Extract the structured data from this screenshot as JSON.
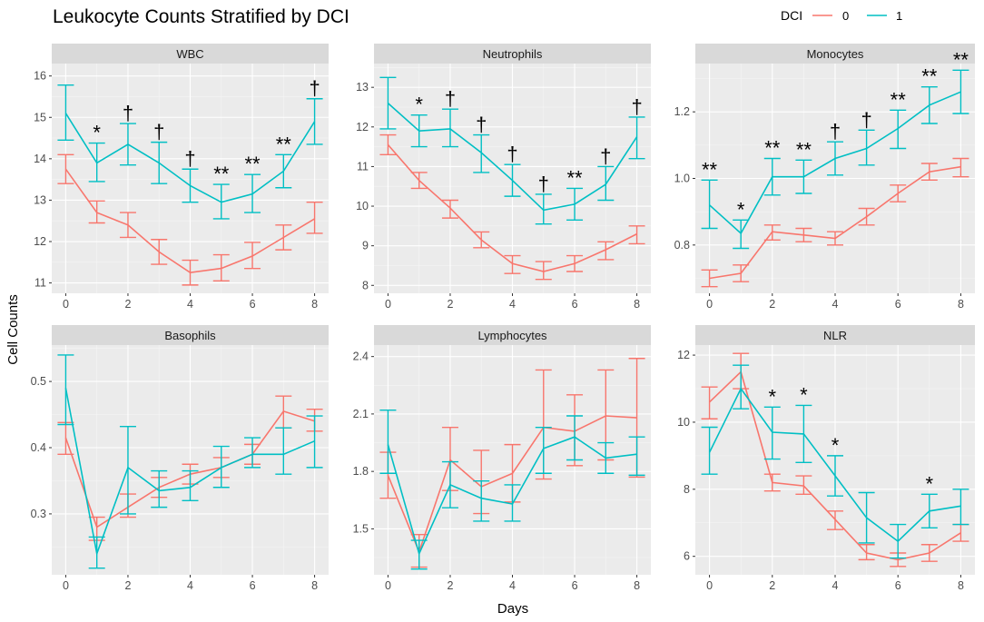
{
  "title": "Leukocyte Counts Stratified by DCI",
  "xlabel": "Days",
  "ylabel": "Cell Counts",
  "legend": {
    "title": "DCI",
    "labels": [
      "0",
      "1"
    ]
  },
  "colors": {
    "dci0": "#f8766d",
    "dci1": "#00bfc4"
  },
  "chart_data": [
    {
      "type": "line",
      "panel": "WBC",
      "x": [
        0,
        1,
        2,
        3,
        4,
        5,
        6,
        7,
        8
      ],
      "ylim": [
        10.75,
        16.3
      ],
      "yticks": [
        11,
        12,
        13,
        14,
        15,
        16
      ],
      "xticks": [
        0,
        2,
        4,
        6,
        8
      ],
      "series": [
        {
          "name": "0",
          "values": [
            13.75,
            12.7,
            12.4,
            11.75,
            11.25,
            11.35,
            11.65,
            12.1,
            12.55
          ],
          "lower": [
            13.4,
            12.45,
            12.1,
            11.45,
            10.95,
            11.05,
            11.35,
            11.8,
            12.2
          ],
          "upper": [
            14.1,
            12.98,
            12.7,
            12.05,
            11.55,
            11.68,
            11.98,
            12.4,
            12.95
          ]
        },
        {
          "name": "1",
          "values": [
            15.1,
            13.9,
            14.35,
            13.9,
            13.35,
            12.95,
            13.15,
            13.7,
            14.9
          ],
          "lower": [
            14.45,
            13.45,
            13.85,
            13.4,
            12.95,
            12.55,
            12.7,
            13.3,
            14.35
          ],
          "upper": [
            15.78,
            14.38,
            14.85,
            14.4,
            13.75,
            13.38,
            13.62,
            14.1,
            15.45
          ]
        }
      ],
      "annotations": [
        {
          "x": 1,
          "label": "*"
        },
        {
          "x": 2,
          "label": "†"
        },
        {
          "x": 3,
          "label": "†"
        },
        {
          "x": 4,
          "label": "†"
        },
        {
          "x": 5,
          "label": "**"
        },
        {
          "x": 6,
          "label": "**"
        },
        {
          "x": 7,
          "label": "**"
        },
        {
          "x": 8,
          "label": "†"
        }
      ]
    },
    {
      "type": "line",
      "panel": "Neutrophils",
      "x": [
        0,
        1,
        2,
        3,
        4,
        5,
        6,
        7,
        8
      ],
      "ylim": [
        7.8,
        13.6
      ],
      "yticks": [
        8,
        9,
        10,
        11,
        12,
        13
      ],
      "xticks": [
        0,
        2,
        4,
        6,
        8
      ],
      "series": [
        {
          "name": "0",
          "values": [
            11.55,
            10.65,
            9.95,
            9.15,
            8.55,
            8.35,
            8.55,
            8.9,
            9.3
          ],
          "lower": [
            11.3,
            10.45,
            9.7,
            8.95,
            8.3,
            8.15,
            8.35,
            8.65,
            9.05
          ],
          "upper": [
            11.8,
            10.85,
            10.15,
            9.35,
            8.75,
            8.6,
            8.75,
            9.1,
            9.5
          ]
        },
        {
          "name": "1",
          "values": [
            12.6,
            11.9,
            11.95,
            11.35,
            10.65,
            9.9,
            10.05,
            10.55,
            11.75
          ],
          "lower": [
            11.95,
            11.5,
            11.5,
            10.85,
            10.25,
            9.55,
            9.65,
            10.15,
            11.2
          ],
          "upper": [
            13.25,
            12.3,
            12.45,
            11.8,
            11.05,
            10.3,
            10.45,
            11.0,
            12.25
          ]
        }
      ],
      "annotations": [
        {
          "x": 1,
          "label": "*"
        },
        {
          "x": 2,
          "label": "†"
        },
        {
          "x": 3,
          "label": "†"
        },
        {
          "x": 4,
          "label": "†"
        },
        {
          "x": 5,
          "label": "†"
        },
        {
          "x": 6,
          "label": "**"
        },
        {
          "x": 7,
          "label": "†"
        },
        {
          "x": 8,
          "label": "†"
        }
      ]
    },
    {
      "type": "line",
      "panel": "Monocytes",
      "x": [
        0,
        1,
        2,
        3,
        4,
        5,
        6,
        7,
        8
      ],
      "ylim": [
        0.655,
        1.345
      ],
      "yticks": [
        0.8,
        1.0,
        1.2
      ],
      "ytick_labels": [
        "0.8",
        "1.0",
        "1.2"
      ],
      "xticks": [
        0,
        2,
        4,
        6,
        8
      ],
      "series": [
        {
          "name": "0",
          "values": [
            0.7,
            0.715,
            0.84,
            0.83,
            0.82,
            0.885,
            0.955,
            1.02,
            1.035
          ],
          "lower": [
            0.675,
            0.69,
            0.815,
            0.81,
            0.8,
            0.86,
            0.93,
            0.995,
            1.005
          ],
          "upper": [
            0.725,
            0.74,
            0.86,
            0.85,
            0.84,
            0.91,
            0.98,
            1.045,
            1.06
          ]
        },
        {
          "name": "1",
          "values": [
            0.92,
            0.835,
            1.005,
            1.005,
            1.06,
            1.09,
            1.15,
            1.22,
            1.26
          ],
          "lower": [
            0.85,
            0.79,
            0.95,
            0.955,
            1.01,
            1.04,
            1.09,
            1.165,
            1.195
          ],
          "upper": [
            0.995,
            0.875,
            1.06,
            1.055,
            1.11,
            1.145,
            1.205,
            1.275,
            1.325
          ]
        }
      ],
      "annotations": [
        {
          "x": 0,
          "label": "**"
        },
        {
          "x": 1,
          "label": "*"
        },
        {
          "x": 2,
          "label": "**"
        },
        {
          "x": 3,
          "label": "**"
        },
        {
          "x": 4,
          "label": "†"
        },
        {
          "x": 5,
          "label": "†"
        },
        {
          "x": 6,
          "label": "**"
        },
        {
          "x": 7,
          "label": "**"
        },
        {
          "x": 8,
          "label": "**"
        }
      ]
    },
    {
      "type": "line",
      "panel": "Basophils",
      "x": [
        0,
        1,
        2,
        3,
        4,
        5,
        6,
        7,
        8
      ],
      "ylim": [
        0.208,
        0.555
      ],
      "yticks": [
        0.3,
        0.4,
        0.5
      ],
      "ytick_labels": [
        "0.3",
        "0.4",
        "0.5"
      ],
      "xticks": [
        0,
        2,
        4,
        6,
        8
      ],
      "series": [
        {
          "name": "0",
          "values": [
            0.415,
            0.28,
            0.31,
            0.34,
            0.36,
            0.37,
            0.39,
            0.455,
            0.44
          ],
          "lower": [
            0.39,
            0.26,
            0.295,
            0.325,
            0.345,
            0.355,
            0.375,
            0.43,
            0.425
          ],
          "upper": [
            0.438,
            0.295,
            0.33,
            0.355,
            0.375,
            0.385,
            0.405,
            0.478,
            0.458
          ]
        },
        {
          "name": "1",
          "values": [
            0.49,
            0.24,
            0.37,
            0.335,
            0.34,
            0.37,
            0.39,
            0.39,
            0.41
          ],
          "lower": [
            0.435,
            0.218,
            0.3,
            0.31,
            0.32,
            0.34,
            0.37,
            0.36,
            0.37
          ],
          "upper": [
            0.54,
            0.265,
            0.432,
            0.365,
            0.365,
            0.402,
            0.415,
            0.43,
            0.448
          ]
        }
      ],
      "annotations": []
    },
    {
      "type": "line",
      "panel": "Lymphocytes",
      "x": [
        0,
        1,
        2,
        3,
        4,
        5,
        6,
        7,
        8
      ],
      "ylim": [
        1.26,
        2.46
      ],
      "yticks": [
        1.5,
        1.8,
        2.1,
        2.4
      ],
      "ytick_labels": [
        "1.5",
        "1.8",
        "2.1",
        "2.4"
      ],
      "xticks": [
        0,
        2,
        4,
        6,
        8
      ],
      "series": [
        {
          "name": "0",
          "values": [
            1.78,
            1.38,
            1.86,
            1.72,
            1.79,
            2.03,
            2.01,
            2.09,
            2.08
          ],
          "lower": [
            1.66,
            1.3,
            1.7,
            1.58,
            1.64,
            1.76,
            1.83,
            1.86,
            1.77
          ],
          "upper": [
            1.9,
            1.47,
            2.03,
            1.91,
            1.94,
            2.33,
            2.2,
            2.33,
            2.39
          ]
        },
        {
          "name": "1",
          "values": [
            1.94,
            1.37,
            1.73,
            1.66,
            1.63,
            1.92,
            1.98,
            1.87,
            1.89
          ],
          "lower": [
            1.79,
            1.29,
            1.61,
            1.54,
            1.54,
            1.79,
            1.86,
            1.79,
            1.78
          ],
          "upper": [
            2.12,
            1.44,
            1.85,
            1.75,
            1.73,
            2.03,
            2.09,
            1.95,
            1.98
          ]
        }
      ],
      "annotations": []
    },
    {
      "type": "line",
      "panel": "NLR",
      "x": [
        0,
        1,
        2,
        3,
        4,
        5,
        6,
        7,
        8
      ],
      "ylim": [
        5.45,
        12.3
      ],
      "yticks": [
        6,
        8,
        10,
        12
      ],
      "xticks": [
        0,
        2,
        4,
        6,
        8
      ],
      "series": [
        {
          "name": "0",
          "values": [
            10.6,
            11.5,
            8.2,
            8.1,
            7.1,
            6.1,
            5.9,
            6.1,
            6.7
          ],
          "lower": [
            10.1,
            11.0,
            7.95,
            7.85,
            6.8,
            5.9,
            5.7,
            5.85,
            6.45
          ],
          "upper": [
            11.05,
            12.05,
            8.45,
            8.4,
            7.35,
            6.35,
            6.1,
            6.35,
            6.95
          ]
        },
        {
          "name": "1",
          "values": [
            9.1,
            11.0,
            9.7,
            9.65,
            8.4,
            7.15,
            6.45,
            7.35,
            7.5
          ],
          "lower": [
            8.45,
            10.4,
            8.9,
            8.8,
            7.8,
            6.4,
            5.95,
            6.85,
            6.95
          ],
          "upper": [
            9.85,
            11.7,
            10.45,
            10.5,
            9.0,
            7.9,
            6.95,
            7.85,
            8.0
          ]
        }
      ],
      "annotations": [
        {
          "x": 2,
          "label": "*"
        },
        {
          "x": 3,
          "label": "*"
        },
        {
          "x": 4,
          "label": "*"
        },
        {
          "x": 7,
          "label": "*"
        }
      ]
    }
  ]
}
